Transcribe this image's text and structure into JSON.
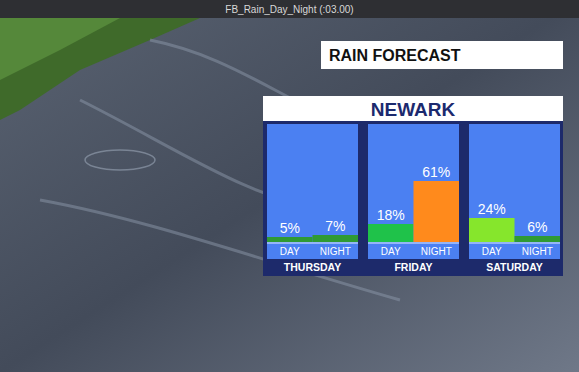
{
  "header_bar": "FB_Rain_Day_Night (:03.00)",
  "chart_data": {
    "type": "bar",
    "title": "RAIN FORECAST",
    "subtitle": "NEWARK",
    "categories": [
      "THURSDAY",
      "FRIDAY",
      "SATURDAY"
    ],
    "series": [
      {
        "name": "DAY",
        "values": [
          5,
          18,
          24
        ],
        "value_labels": [
          "5%",
          "18%",
          "24%"
        ],
        "colors": [
          "#2f9a34",
          "#1fc24a",
          "#86e62c"
        ]
      },
      {
        "name": "NIGHT",
        "values": [
          7,
          61,
          6
        ],
        "value_labels": [
          "7%",
          "61%",
          "6%"
        ],
        "colors": [
          "#2f9a34",
          "#ff8a1c",
          "#2f9a34"
        ]
      }
    ],
    "ylim": [
      0,
      100
    ],
    "data_labels": true,
    "tick_labels": "x",
    "grid": false
  }
}
